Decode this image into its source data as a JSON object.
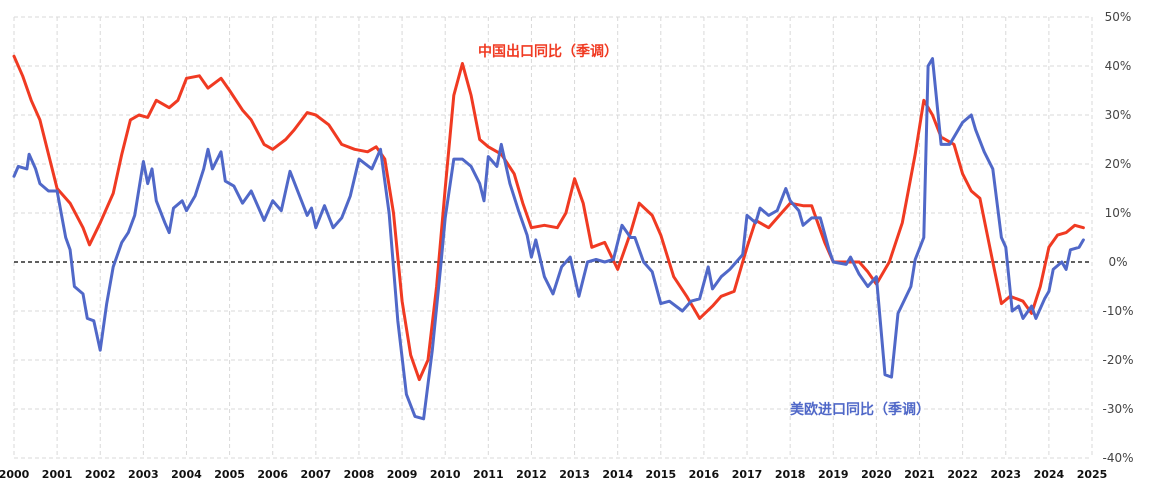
{
  "chart_data": {
    "type": "line",
    "title": "",
    "xlabel": "",
    "ylabel": "",
    "xlim": [
      2000,
      2025
    ],
    "ylim": [
      -40,
      50
    ],
    "grid": true,
    "y_axis_side": "right",
    "x_ticks": [
      "2000",
      "2001",
      "2002",
      "2003",
      "2004",
      "2005",
      "2006",
      "2007",
      "2008",
      "2009",
      "2010",
      "2011",
      "2012",
      "2013",
      "2014",
      "2015",
      "2016",
      "2017",
      "2018",
      "2019",
      "2020",
      "2021",
      "2022",
      "2023",
      "2024",
      "2025"
    ],
    "y_ticks": [
      "50%",
      "40%",
      "30%",
      "20%",
      "10%",
      "0%",
      "-10%",
      "-20%",
      "-30%",
      "-40%"
    ],
    "y_tick_values": [
      50,
      40,
      30,
      20,
      10,
      0,
      -10,
      -20,
      -30,
      -40
    ],
    "reference_line": 0,
    "series": [
      {
        "name": "中国出口同比（季调）",
        "color": "#f03a22",
        "points": [
          [
            2000.0,
            42
          ],
          [
            2000.2,
            38
          ],
          [
            2000.4,
            33
          ],
          [
            2000.6,
            29
          ],
          [
            2000.8,
            22
          ],
          [
            2001.0,
            15
          ],
          [
            2001.3,
            12
          ],
          [
            2001.6,
            7
          ],
          [
            2001.75,
            3.5
          ],
          [
            2002.0,
            8
          ],
          [
            2002.3,
            14
          ],
          [
            2002.5,
            22
          ],
          [
            2002.7,
            29
          ],
          [
            2002.9,
            30
          ],
          [
            2003.1,
            29.5
          ],
          [
            2003.3,
            33
          ],
          [
            2003.6,
            31.5
          ],
          [
            2003.8,
            33
          ],
          [
            2004.0,
            37.5
          ],
          [
            2004.3,
            38
          ],
          [
            2004.5,
            35.5
          ],
          [
            2004.8,
            37.5
          ],
          [
            2005.0,
            35
          ],
          [
            2005.3,
            31
          ],
          [
            2005.5,
            29
          ],
          [
            2005.8,
            24
          ],
          [
            2006.0,
            23
          ],
          [
            2006.3,
            25
          ],
          [
            2006.5,
            27
          ],
          [
            2006.8,
            30.5
          ],
          [
            2007.0,
            30
          ],
          [
            2007.3,
            28
          ],
          [
            2007.6,
            24
          ],
          [
            2007.9,
            23
          ],
          [
            2008.2,
            22.5
          ],
          [
            2008.4,
            23.5
          ],
          [
            2008.6,
            21
          ],
          [
            2008.8,
            10
          ],
          [
            2009.0,
            -8
          ],
          [
            2009.2,
            -19
          ],
          [
            2009.4,
            -24
          ],
          [
            2009.6,
            -20
          ],
          [
            2009.8,
            -5
          ],
          [
            2010.0,
            15
          ],
          [
            2010.2,
            34
          ],
          [
            2010.4,
            40.5
          ],
          [
            2010.6,
            34
          ],
          [
            2010.8,
            25
          ],
          [
            2011.0,
            23.5
          ],
          [
            2011.3,
            22
          ],
          [
            2011.6,
            18
          ],
          [
            2011.8,
            12
          ],
          [
            2012.0,
            7
          ],
          [
            2012.3,
            7.5
          ],
          [
            2012.6,
            7
          ],
          [
            2012.8,
            10
          ],
          [
            2013.0,
            17
          ],
          [
            2013.2,
            12
          ],
          [
            2013.4,
            3
          ],
          [
            2013.7,
            4
          ],
          [
            2014.0,
            -1.5
          ],
          [
            2014.3,
            6
          ],
          [
            2014.5,
            12
          ],
          [
            2014.8,
            9.5
          ],
          [
            2015.0,
            5.5
          ],
          [
            2015.3,
            -3
          ],
          [
            2015.6,
            -7
          ],
          [
            2015.9,
            -11.5
          ],
          [
            2016.2,
            -9
          ],
          [
            2016.4,
            -7
          ],
          [
            2016.7,
            -6
          ],
          [
            2017.0,
            3
          ],
          [
            2017.2,
            8.5
          ],
          [
            2017.5,
            7
          ],
          [
            2017.8,
            10
          ],
          [
            2018.0,
            12
          ],
          [
            2018.3,
            11.5
          ],
          [
            2018.5,
            11.5
          ],
          [
            2018.8,
            4
          ],
          [
            2019.0,
            0
          ],
          [
            2019.3,
            0
          ],
          [
            2019.6,
            0
          ],
          [
            2019.8,
            -2
          ],
          [
            2020.0,
            -4.5
          ],
          [
            2020.3,
            0
          ],
          [
            2020.6,
            8
          ],
          [
            2020.9,
            22
          ],
          [
            2021.1,
            33
          ],
          [
            2021.3,
            30
          ],
          [
            2021.5,
            25.5
          ],
          [
            2021.8,
            24
          ],
          [
            2022.0,
            18
          ],
          [
            2022.2,
            14.5
          ],
          [
            2022.4,
            13
          ],
          [
            2022.7,
            0
          ],
          [
            2022.9,
            -8.5
          ],
          [
            2023.1,
            -7
          ],
          [
            2023.4,
            -8
          ],
          [
            2023.6,
            -10.5
          ],
          [
            2023.8,
            -5
          ],
          [
            2024.0,
            3
          ],
          [
            2024.2,
            5.5
          ],
          [
            2024.4,
            6
          ],
          [
            2024.6,
            7.5
          ],
          [
            2024.8,
            7
          ]
        ]
      },
      {
        "name": "美欧进口同比（季调）",
        "color": "#5068c8",
        "points": [
          [
            2000.0,
            17.5
          ],
          [
            2000.1,
            19.5
          ],
          [
            2000.3,
            19
          ],
          [
            2000.35,
            22
          ],
          [
            2000.5,
            19
          ],
          [
            2000.6,
            16
          ],
          [
            2000.8,
            14.5
          ],
          [
            2001.0,
            14.5
          ],
          [
            2001.2,
            5
          ],
          [
            2001.3,
            2.5
          ],
          [
            2001.4,
            -5
          ],
          [
            2001.6,
            -6.5
          ],
          [
            2001.7,
            -11.5
          ],
          [
            2001.85,
            -12
          ],
          [
            2002.0,
            -18
          ],
          [
            2002.15,
            -8.5
          ],
          [
            2002.3,
            -1
          ],
          [
            2002.5,
            4
          ],
          [
            2002.65,
            6
          ],
          [
            2002.8,
            9.5
          ],
          [
            2003.0,
            20.5
          ],
          [
            2003.1,
            16
          ],
          [
            2003.2,
            19
          ],
          [
            2003.3,
            12.5
          ],
          [
            2003.5,
            8
          ],
          [
            2003.6,
            6
          ],
          [
            2003.7,
            11
          ],
          [
            2003.9,
            12.5
          ],
          [
            2004.0,
            10.5
          ],
          [
            2004.2,
            13.5
          ],
          [
            2004.4,
            19
          ],
          [
            2004.5,
            23
          ],
          [
            2004.6,
            19
          ],
          [
            2004.8,
            22.5
          ],
          [
            2004.9,
            16.5
          ],
          [
            2005.1,
            15.5
          ],
          [
            2005.3,
            12
          ],
          [
            2005.5,
            14.5
          ],
          [
            2005.8,
            8.5
          ],
          [
            2006.0,
            12.5
          ],
          [
            2006.2,
            10.5
          ],
          [
            2006.4,
            18.5
          ],
          [
            2006.6,
            14
          ],
          [
            2006.8,
            9.5
          ],
          [
            2006.9,
            11
          ],
          [
            2007.0,
            7
          ],
          [
            2007.2,
            11.5
          ],
          [
            2007.4,
            7
          ],
          [
            2007.6,
            9
          ],
          [
            2007.8,
            13.5
          ],
          [
            2008.0,
            21
          ],
          [
            2008.3,
            19
          ],
          [
            2008.5,
            23
          ],
          [
            2008.7,
            10
          ],
          [
            2008.9,
            -12
          ],
          [
            2009.1,
            -27
          ],
          [
            2009.3,
            -31.5
          ],
          [
            2009.5,
            -32
          ],
          [
            2009.7,
            -18
          ],
          [
            2009.9,
            -0.5
          ],
          [
            2010.0,
            9
          ],
          [
            2010.2,
            21
          ],
          [
            2010.4,
            21
          ],
          [
            2010.6,
            19.5
          ],
          [
            2010.8,
            16
          ],
          [
            2010.9,
            12.5
          ],
          [
            2011.0,
            21.5
          ],
          [
            2011.2,
            19.5
          ],
          [
            2011.3,
            24
          ],
          [
            2011.5,
            16
          ],
          [
            2011.7,
            10.5
          ],
          [
            2011.9,
            5.5
          ],
          [
            2012.0,
            1
          ],
          [
            2012.1,
            4.5
          ],
          [
            2012.3,
            -3
          ],
          [
            2012.5,
            -6.5
          ],
          [
            2012.7,
            -1
          ],
          [
            2012.9,
            1
          ],
          [
            2013.1,
            -7
          ],
          [
            2013.3,
            0
          ],
          [
            2013.5,
            0.5
          ],
          [
            2013.7,
            0
          ],
          [
            2013.9,
            0.5
          ],
          [
            2014.1,
            7.5
          ],
          [
            2014.3,
            5
          ],
          [
            2014.4,
            5
          ],
          [
            2014.6,
            0
          ],
          [
            2014.8,
            -2
          ],
          [
            2015.0,
            -8.5
          ],
          [
            2015.2,
            -8
          ],
          [
            2015.5,
            -10
          ],
          [
            2015.7,
            -8
          ],
          [
            2015.9,
            -7.5
          ],
          [
            2016.1,
            -1
          ],
          [
            2016.2,
            -5.5
          ],
          [
            2016.4,
            -3
          ],
          [
            2016.6,
            -1.5
          ],
          [
            2016.9,
            1.5
          ],
          [
            2017.0,
            9.5
          ],
          [
            2017.2,
            8
          ],
          [
            2017.3,
            11
          ],
          [
            2017.5,
            9.5
          ],
          [
            2017.7,
            10.5
          ],
          [
            2017.9,
            15
          ],
          [
            2018.0,
            12.5
          ],
          [
            2018.2,
            10.5
          ],
          [
            2018.3,
            7.5
          ],
          [
            2018.5,
            9
          ],
          [
            2018.7,
            9
          ],
          [
            2018.9,
            2.5
          ],
          [
            2019.0,
            0
          ],
          [
            2019.3,
            -0.5
          ],
          [
            2019.4,
            1
          ],
          [
            2019.6,
            -2.5
          ],
          [
            2019.8,
            -5
          ],
          [
            2020.0,
            -3
          ],
          [
            2020.2,
            -23
          ],
          [
            2020.35,
            -23.5
          ],
          [
            2020.5,
            -10.5
          ],
          [
            2020.8,
            -5
          ],
          [
            2020.9,
            0.5
          ],
          [
            2021.1,
            5
          ],
          [
            2021.2,
            40
          ],
          [
            2021.3,
            41.5
          ],
          [
            2021.5,
            24
          ],
          [
            2021.7,
            24
          ],
          [
            2021.9,
            27
          ],
          [
            2022.0,
            28.5
          ],
          [
            2022.2,
            30
          ],
          [
            2022.3,
            27
          ],
          [
            2022.5,
            22.5
          ],
          [
            2022.7,
            19
          ],
          [
            2022.9,
            5
          ],
          [
            2023.0,
            3
          ],
          [
            2023.15,
            -10
          ],
          [
            2023.3,
            -9
          ],
          [
            2023.4,
            -11.5
          ],
          [
            2023.6,
            -9
          ],
          [
            2023.7,
            -11.5
          ],
          [
            2023.9,
            -7.5
          ],
          [
            2024.0,
            -6
          ],
          [
            2024.1,
            -1.5
          ],
          [
            2024.3,
            0
          ],
          [
            2024.4,
            -1.5
          ],
          [
            2024.5,
            2.5
          ],
          [
            2024.7,
            3
          ],
          [
            2024.8,
            4.5
          ]
        ]
      }
    ],
    "annotations": [
      "中国出口同比（季调）",
      "美欧进口同比（季调）"
    ]
  }
}
